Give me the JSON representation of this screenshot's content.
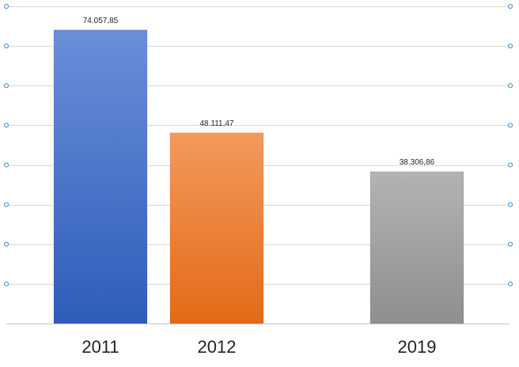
{
  "chart_data": {
    "type": "bar",
    "categories": [
      "2011",
      "2012",
      "2019"
    ],
    "values": [
      74057.85,
      48111.47,
      38306.86
    ],
    "value_labels": [
      "74.057,85",
      "48.111,47",
      "38.306,86"
    ],
    "colors": {
      "2011": [
        "#6a8fd8",
        "#2e5dba"
      ],
      "2012": [
        "#f39a5c",
        "#e36a17"
      ],
      "2019": [
        "#b3b3b3",
        "#8f8f8f"
      ]
    },
    "ylim": [
      0,
      80000
    ],
    "grid": true,
    "legend": "none",
    "title": "",
    "xlabel": "",
    "ylabel": ""
  }
}
